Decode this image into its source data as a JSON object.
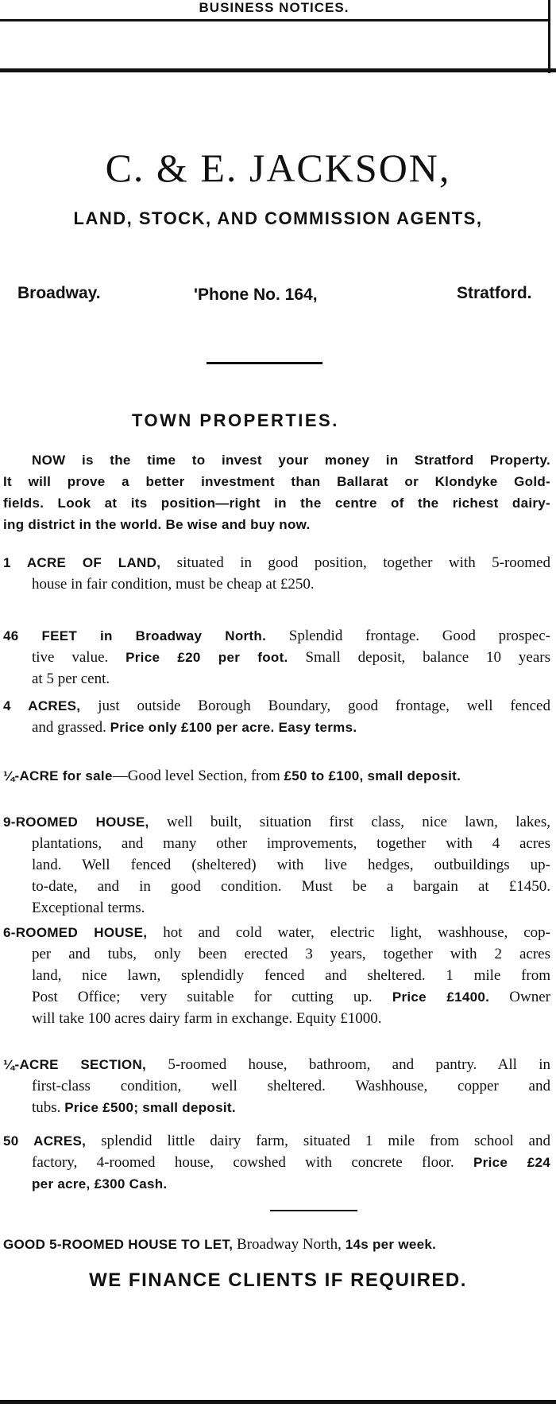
{
  "section_header": "BUSINESS NOTICES.",
  "advert": {
    "firm": "C. & E. JACKSON,",
    "tagline": "LAND, STOCK, AND COMMISSION AGENTS,",
    "address_left": "Broadway.",
    "phone": "'Phone No. 164,",
    "address_right": "Stratford.",
    "section_title": "TOWN PROPERTIES.",
    "intro": [
      [
        [
          "b",
          "NOW is the time to invest your money in Stratford Property."
        ]
      ],
      [
        [
          "b",
          "It will prove a better investment than Ballarat or Klondyke Gold-"
        ]
      ],
      [
        [
          "b",
          "fields.   Look at its position—right in the centre of the richest dairy-"
        ]
      ],
      [
        [
          "b",
          "ing district in the world.   Be wise and buy now."
        ]
      ]
    ],
    "listings": [
      {
        "lines": [
          [
            [
              "b",
              "1 ACRE OF LAND,"
            ],
            [
              "n",
              " situated in good position, together with 5-roomed"
            ]
          ],
          [
            [
              "n",
              "house in fair condition, must be cheap at £250."
            ]
          ]
        ]
      },
      {
        "lines": [
          [
            [
              "b",
              "46 FEET in Broadway North."
            ],
            [
              "n",
              "  Splendid frontage.  Good prospec-"
            ]
          ],
          [
            [
              "n",
              "tive value.  "
            ],
            [
              "b",
              "Price £20 per foot."
            ],
            [
              "n",
              "  Small deposit, balance 10 years"
            ]
          ],
          [
            [
              "n",
              "at 5 per cent."
            ]
          ]
        ]
      },
      {
        "lines": [
          [
            [
              "b",
              "4 ACRES,"
            ],
            [
              "n",
              " just outside Borough Boundary, good frontage, well fenced"
            ]
          ],
          [
            [
              "n",
              "and grassed.  "
            ],
            [
              "b",
              "Price only £100 per acre.  Easy terms."
            ]
          ]
        ]
      },
      {
        "lines": [
          [
            [
              "b",
              "¼-ACRE for sale"
            ],
            [
              "n",
              "—Good level Section, from "
            ],
            [
              "b",
              "£50 to £100, small deposit."
            ]
          ]
        ]
      },
      {
        "lines": [
          [
            [
              "b",
              "9-ROOMED HOUSE,"
            ],
            [
              "n",
              " well built, situation first class, nice lawn, lakes,"
            ]
          ],
          [
            [
              "n",
              "plantations, and many other improvements, together with 4 acres"
            ]
          ],
          [
            [
              "n",
              "land.  Well fenced (sheltered) with live hedges, outbuildings up-"
            ]
          ],
          [
            [
              "n",
              "to-date, and in good condition.  Must be a bargain at £1450."
            ]
          ],
          [
            [
              "n",
              "Exceptional terms."
            ]
          ]
        ]
      },
      {
        "lines": [
          [
            [
              "b",
              "6-ROOMED HOUSE,"
            ],
            [
              "n",
              " hot and cold water, electric light, washhouse, cop-"
            ]
          ],
          [
            [
              "n",
              "per and tubs, only been erected 3 years, together with 2 acres"
            ]
          ],
          [
            [
              "n",
              "land, nice lawn, splendidly fenced and sheltered.  1 mile from"
            ]
          ],
          [
            [
              "n",
              "Post Office; very suitable for cutting up.  "
            ],
            [
              "b",
              "Price £1400."
            ],
            [
              "n",
              " Owner"
            ]
          ],
          [
            [
              "n",
              "will take 100 acres dairy farm in exchange.  Equity £1000."
            ]
          ]
        ]
      },
      {
        "lines": [
          [
            [
              "b",
              "¼-ACRE SECTION,"
            ],
            [
              "n",
              " 5-roomed house, bathroom, and pantry.  All in"
            ]
          ],
          [
            [
              "n",
              "first-class condition, well sheltered.  Washhouse, copper and"
            ]
          ],
          [
            [
              "n",
              "tubs.  "
            ],
            [
              "b",
              "Price £500; small deposit."
            ]
          ]
        ]
      },
      {
        "lines": [
          [
            [
              "b",
              "50 ACRES,"
            ],
            [
              "n",
              " splendid little dairy farm, situated 1 mile from school and"
            ]
          ],
          [
            [
              "n",
              "factory, 4-roomed house, cowshed with concrete floor.   "
            ],
            [
              "b",
              "Price £24"
            ]
          ],
          [
            [
              "b",
              "per acre, £300 Cash."
            ]
          ]
        ]
      },
      {
        "lines": [
          [
            [
              "b",
              "GOOD 5-ROOMED HOUSE TO LET,"
            ],
            [
              "n",
              " Broadway North, "
            ],
            [
              "b",
              "14s per week."
            ]
          ]
        ]
      }
    ],
    "closing": "WE FINANCE CLIENTS IF REQUIRED."
  }
}
